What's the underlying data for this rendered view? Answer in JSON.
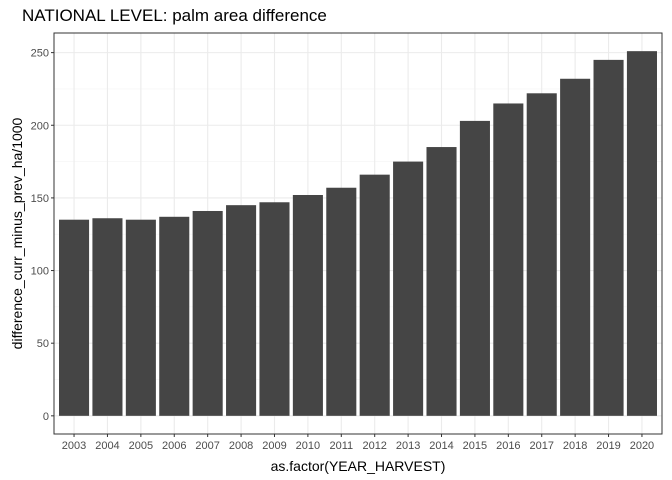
{
  "chart_data": {
    "type": "bar",
    "title": "NATIONAL LEVEL: palm area difference",
    "xlabel": "as.factor(YEAR_HARVEST)",
    "ylabel": "difference_curr_minus_prev_ha/1000",
    "categories": [
      "2003",
      "2004",
      "2005",
      "2006",
      "2007",
      "2008",
      "2009",
      "2010",
      "2011",
      "2012",
      "2013",
      "2014",
      "2015",
      "2016",
      "2017",
      "2018",
      "2019",
      "2020"
    ],
    "values": [
      135,
      136,
      135,
      137,
      141,
      145,
      147,
      152,
      157,
      166,
      175,
      185,
      203,
      215,
      222,
      232,
      245,
      251
    ],
    "ylim": [
      -12.5,
      263.5
    ],
    "yticks": [
      0,
      50,
      100,
      150,
      200,
      250
    ],
    "grid": true,
    "legend": "none",
    "colors": {
      "bar": "#454545",
      "grid_major": "#ebebeb",
      "grid_minor": "#f5f5f5",
      "panel_border": "#333333"
    }
  }
}
